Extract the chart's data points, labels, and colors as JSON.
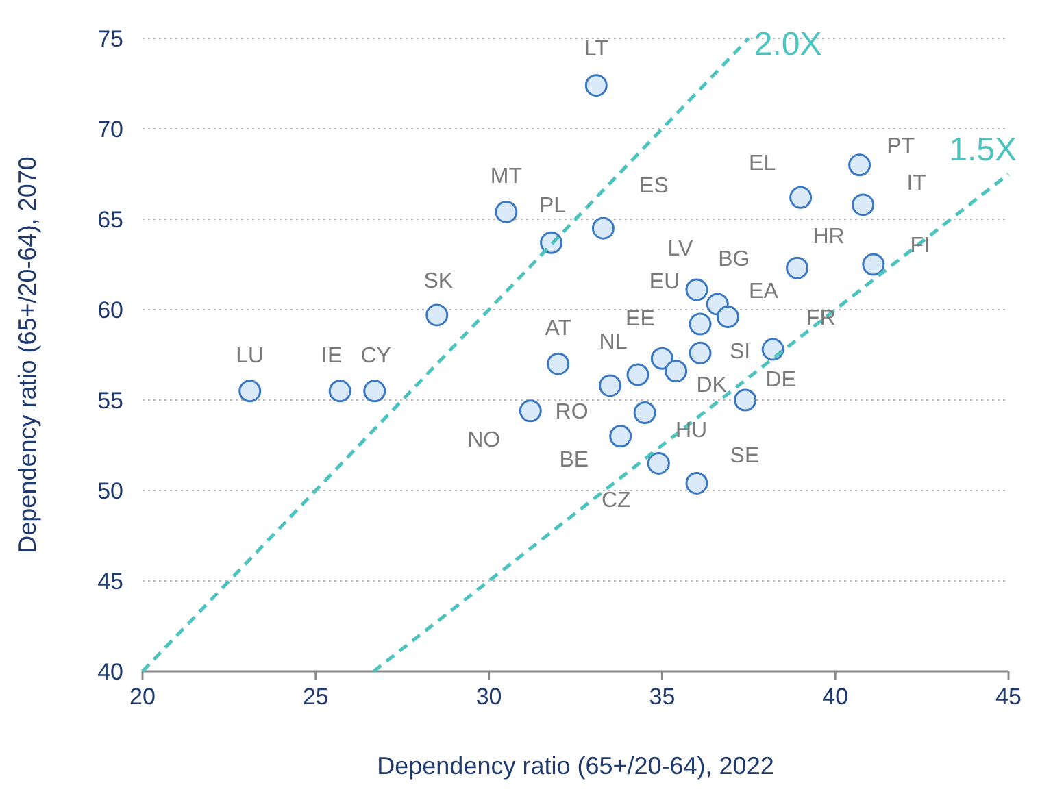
{
  "chart_data": {
    "type": "scatter",
    "xlabel": "Dependency ratio (65+/20-64), 2022",
    "ylabel": "Dependency ratio (65+/20-64), 2070",
    "xlim": [
      20,
      45
    ],
    "xticks": [
      20,
      25,
      30,
      35,
      40,
      45
    ],
    "ylim": [
      40,
      75
    ],
    "yticks": [
      40,
      45,
      50,
      55,
      60,
      65,
      70,
      75
    ],
    "grid": "y",
    "marker": "circle",
    "series": [
      {
        "color": "#3a78c2",
        "x": [
          23.1,
          25.7,
          26.7,
          28.5,
          30.5,
          31.8,
          32.0,
          31.2,
          33.1,
          33.3,
          39.0,
          40.7,
          40.8,
          38.9,
          41.1,
          36.0,
          36.6,
          36.9,
          36.1,
          36.1,
          35.0,
          34.3,
          33.5,
          35.4,
          34.5,
          33.8,
          34.9,
          36.0,
          37.4,
          38.2
        ],
        "values": [
          55.5,
          55.5,
          55.5,
          59.7,
          65.4,
          63.7,
          57.0,
          54.4,
          72.4,
          64.5,
          66.2,
          68.0,
          65.8,
          62.3,
          62.5,
          61.1,
          60.3,
          59.6,
          59.2,
          57.6,
          57.3,
          56.4,
          55.8,
          56.6,
          54.3,
          53.0,
          51.5,
          50.4,
          55.0,
          57.8
        ]
      },
      {
        "type": "line",
        "name": "2.0X",
        "color": "#4cc3bf",
        "line_style": "dashed",
        "marker": "none",
        "x": [
          20,
          37.5
        ],
        "values": [
          40,
          75
        ]
      },
      {
        "type": "line",
        "name": "1.5X",
        "color": "#4cc3bf",
        "line_style": "dashed",
        "marker": "none",
        "x": [
          26.67,
          45
        ],
        "values": [
          40,
          67.5
        ]
      }
    ],
    "annotations": [
      {
        "text": "LU",
        "x": 23.1,
        "y": 55.5
      },
      {
        "text": "IE",
        "x": 25.7,
        "y": 55.5
      },
      {
        "text": "CY",
        "x": 26.7,
        "y": 55.5
      },
      {
        "text": "SK",
        "x": 28.5,
        "y": 59.7
      },
      {
        "text": "MT",
        "x": 30.5,
        "y": 65.4
      },
      {
        "text": "PL",
        "x": 31.8,
        "y": 63.7
      },
      {
        "text": "AT",
        "x": 32.0,
        "y": 57.0
      },
      {
        "text": "NO",
        "x": 31.2,
        "y": 54.4
      },
      {
        "text": "LT",
        "x": 33.1,
        "y": 72.4
      },
      {
        "text": "ES",
        "x": 33.3,
        "y": 64.5
      },
      {
        "text": "EL",
        "x": 39.0,
        "y": 66.2
      },
      {
        "text": "PT",
        "x": 40.7,
        "y": 68.0
      },
      {
        "text": "IT",
        "x": 40.8,
        "y": 65.8
      },
      {
        "text": "HR",
        "x": 38.9,
        "y": 62.3
      },
      {
        "text": "FI",
        "x": 41.1,
        "y": 62.5
      },
      {
        "text": "LV",
        "x": 36.0,
        "y": 61.1
      },
      {
        "text": "BG",
        "x": 36.6,
        "y": 60.3
      },
      {
        "text": "EA",
        "x": 36.9,
        "y": 59.6
      },
      {
        "text": "EU",
        "x": 36.1,
        "y": 59.2
      },
      {
        "text": "SI",
        "x": 36.1,
        "y": 57.6
      },
      {
        "text": "EE",
        "x": 35.0,
        "y": 57.3
      },
      {
        "text": "NL",
        "x": 34.3,
        "y": 56.4
      },
      {
        "text": "RO",
        "x": 33.5,
        "y": 55.8
      },
      {
        "text": "DK",
        "x": 35.4,
        "y": 56.6
      },
      {
        "text": "HU",
        "x": 34.5,
        "y": 54.3
      },
      {
        "text": "BE",
        "x": 33.8,
        "y": 53.0
      },
      {
        "text": "CZ",
        "x": 34.9,
        "y": 51.5
      },
      {
        "text": "SE",
        "x": 36.0,
        "y": 50.4
      },
      {
        "text": "DE",
        "x": 37.4,
        "y": 55.0
      },
      {
        "text": "FR",
        "x": 38.2,
        "y": 57.8
      }
    ]
  }
}
